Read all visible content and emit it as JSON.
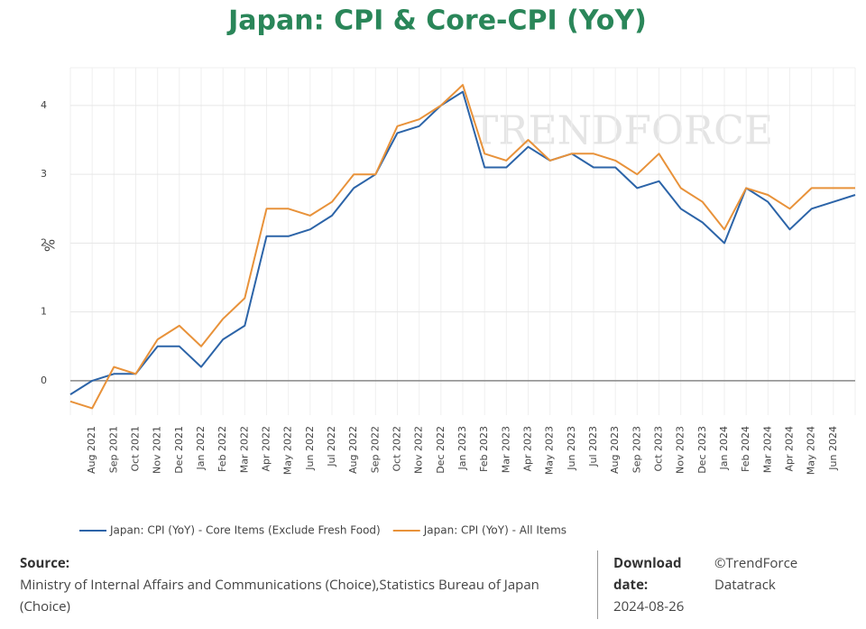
{
  "chart_data": {
    "type": "line",
    "title": "Japan: CPI & Core-CPI (YoY)",
    "ylabel": "%",
    "watermark": "TRENDFORCE",
    "categories": [
      null,
      "Aug 2021",
      "Sep 2021",
      "Oct 2021",
      "Nov 2021",
      "Dec 2021",
      "Jan 2022",
      "Feb 2022",
      "Mar 2022",
      "Apr 2022",
      "May 2022",
      "Jun 2022",
      "Jul 2022",
      "Aug 2022",
      "Sep 2022",
      "Oct 2022",
      "Nov 2022",
      "Dec 2022",
      "Jan 2023",
      "Feb 2023",
      "Mar 2023",
      "Apr 2023",
      "May 2023",
      "Jun 2023",
      "Jul 2023",
      "Aug 2023",
      "Sep 2023",
      "Oct 2023",
      "Nov 2023",
      "Dec 2023",
      "Jan 2024",
      "Feb 2024",
      "Mar 2024",
      "Apr 2024",
      "May 2024",
      "Jun 2024",
      null
    ],
    "series": [
      {
        "name": "Japan: CPI (YoY) - Core Items (Exclude Fresh Food)",
        "color": "#2c64a8",
        "values": [
          -0.2,
          0.0,
          0.1,
          0.1,
          0.5,
          0.5,
          0.2,
          0.6,
          0.8,
          2.1,
          2.1,
          2.2,
          2.4,
          2.8,
          3.0,
          3.6,
          3.7,
          4.0,
          4.2,
          3.1,
          3.1,
          3.4,
          3.2,
          3.3,
          3.1,
          3.1,
          2.8,
          2.9,
          2.5,
          2.3,
          2.0,
          2.8,
          2.6,
          2.2,
          2.5,
          2.6,
          2.7
        ]
      },
      {
        "name": "Japan: CPI (YoY) - All Items",
        "color": "#e8923a",
        "values": [
          -0.3,
          -0.4,
          0.2,
          0.1,
          0.6,
          0.8,
          0.5,
          0.9,
          1.2,
          2.5,
          2.5,
          2.4,
          2.6,
          3.0,
          3.0,
          3.7,
          3.8,
          4.0,
          4.3,
          3.3,
          3.2,
          3.5,
          3.2,
          3.3,
          3.3,
          3.2,
          3.0,
          3.3,
          2.8,
          2.6,
          2.2,
          2.8,
          2.7,
          2.5,
          2.8,
          2.8,
          2.8
        ]
      }
    ],
    "ylim": [
      -0.5,
      4.55
    ],
    "yticks": [
      0,
      1,
      2,
      3,
      4
    ],
    "grid": true
  },
  "footer": {
    "source_label": "Source:",
    "source_text": "Ministry of Internal Affairs and Communications (Choice),Statistics Bureau of Japan (Choice)",
    "download_label": "Download date:",
    "download_date": "2024-08-26",
    "copyright": "©TrendForce Datatrack"
  }
}
